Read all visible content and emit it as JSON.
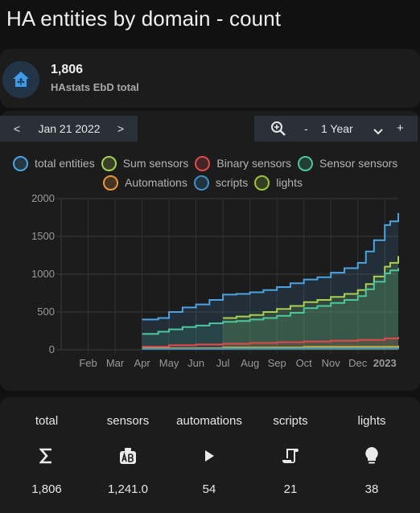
{
  "title": "HA entities by domain - count",
  "entity": {
    "value": "1,806",
    "name": "HAstats EbD total",
    "icon": "home-assistant-icon"
  },
  "toolbar": {
    "prev": "<",
    "date": "Jan 21 2022",
    "next": ">",
    "zoom_icon": "magnify-plus-icon",
    "minus": "-",
    "range": "1 Year",
    "plus": "+"
  },
  "chart_data": {
    "type": "area",
    "x_months": [
      "Feb",
      "Mar",
      "Apr",
      "May",
      "Jun",
      "Jul",
      "Aug",
      "Sep",
      "Oct",
      "Nov",
      "Dec",
      "2023"
    ],
    "ylim": [
      0,
      2000
    ],
    "y_ticks": [
      0,
      500,
      1000,
      1500,
      2000
    ],
    "grid": true,
    "legend_position": "top",
    "series": [
      {
        "name": "total entities",
        "color": "#4ba3e3",
        "points": [
          [
            3.0,
            400
          ],
          [
            3.6,
            420
          ],
          [
            4.0,
            500
          ],
          [
            4.5,
            560
          ],
          [
            5.0,
            600
          ],
          [
            5.5,
            660
          ],
          [
            6.0,
            730
          ],
          [
            6.5,
            740
          ],
          [
            7.0,
            760
          ],
          [
            7.5,
            790
          ],
          [
            8.0,
            830
          ],
          [
            8.5,
            880
          ],
          [
            9.0,
            930
          ],
          [
            9.5,
            960
          ],
          [
            10.0,
            1020
          ],
          [
            10.5,
            1080
          ],
          [
            11.0,
            1150
          ],
          [
            11.3,
            1300
          ],
          [
            11.6,
            1450
          ],
          [
            12.0,
            1650
          ],
          [
            12.2,
            1700
          ],
          [
            12.5,
            1810
          ]
        ]
      },
      {
        "name": "Sum sensors",
        "color": "#a6d152",
        "points": [
          [
            6.0,
            420
          ],
          [
            6.5,
            440
          ],
          [
            7.0,
            460
          ],
          [
            7.5,
            500
          ],
          [
            8.0,
            540
          ],
          [
            8.5,
            580
          ],
          [
            9.0,
            630
          ],
          [
            9.5,
            660
          ],
          [
            10.0,
            700
          ],
          [
            10.5,
            740
          ],
          [
            11.0,
            790
          ],
          [
            11.3,
            870
          ],
          [
            11.6,
            970
          ],
          [
            12.0,
            1100
          ],
          [
            12.2,
            1150
          ],
          [
            12.5,
            1240
          ]
        ]
      },
      {
        "name": "Binary sensors",
        "color": "#e14a4a",
        "points": [
          [
            3.0,
            40
          ],
          [
            4.0,
            60
          ],
          [
            5.0,
            70
          ],
          [
            6.0,
            80
          ],
          [
            7.0,
            90
          ],
          [
            8.0,
            100
          ],
          [
            9.0,
            110
          ],
          [
            10.0,
            120
          ],
          [
            11.0,
            130
          ],
          [
            12.0,
            150
          ],
          [
            12.5,
            170
          ]
        ]
      },
      {
        "name": "Sensor sensors",
        "color": "#4cc79d",
        "points": [
          [
            3.0,
            210
          ],
          [
            3.6,
            240
          ],
          [
            4.0,
            270
          ],
          [
            4.5,
            300
          ],
          [
            5.0,
            320
          ],
          [
            5.5,
            350
          ],
          [
            6.0,
            370
          ],
          [
            6.5,
            380
          ],
          [
            7.0,
            400
          ],
          [
            7.5,
            420
          ],
          [
            8.0,
            450
          ],
          [
            8.5,
            490
          ],
          [
            9.0,
            550
          ],
          [
            9.5,
            580
          ],
          [
            10.0,
            620
          ],
          [
            10.5,
            660
          ],
          [
            11.0,
            710
          ],
          [
            11.3,
            800
          ],
          [
            11.6,
            900
          ],
          [
            12.0,
            1010
          ],
          [
            12.2,
            1050
          ],
          [
            12.5,
            1080
          ]
        ]
      },
      {
        "name": "Automations",
        "color": "#e8983d",
        "points": [
          [
            3.0,
            20
          ],
          [
            6.0,
            30
          ],
          [
            9.0,
            40
          ],
          [
            12.5,
            54
          ]
        ]
      },
      {
        "name": "scripts",
        "color": "#3e8fc7",
        "points": [
          [
            3.0,
            10
          ],
          [
            6.0,
            14
          ],
          [
            9.0,
            17
          ],
          [
            12.5,
            21
          ]
        ]
      },
      {
        "name": "lights",
        "color": "#9bc43d",
        "points": [
          [
            3.0,
            15
          ],
          [
            6.0,
            25
          ],
          [
            9.0,
            30
          ],
          [
            12.5,
            38
          ]
        ]
      }
    ]
  },
  "stats": [
    {
      "label": "total",
      "icon": "sigma-icon",
      "value": "1,806"
    },
    {
      "label": "sensors",
      "icon": "sensor-icon",
      "value": "1,241.0"
    },
    {
      "label": "automations",
      "icon": "play-icon",
      "value": "54"
    },
    {
      "label": "scripts",
      "icon": "script-icon",
      "value": "21"
    },
    {
      "label": "lights",
      "icon": "lightbulb-icon",
      "value": "38"
    }
  ]
}
